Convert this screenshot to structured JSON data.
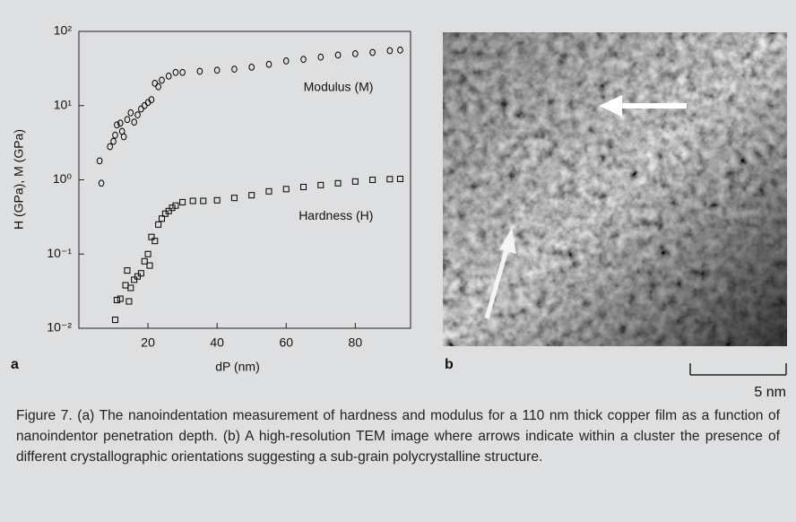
{
  "chart_data": {
    "type": "scatter",
    "y_scale": "log",
    "xlabel": "dP (nm)",
    "ylabel": "H (GPa), M (GPa)",
    "xlim": [
      0,
      96
    ],
    "xticks": [
      20,
      40,
      60,
      80
    ],
    "ylim": [
      0.01,
      100
    ],
    "yticks": [
      {
        "value": 100,
        "label": "10²"
      },
      {
        "value": 10,
        "label": "10¹"
      },
      {
        "value": 1,
        "label": "10⁰"
      },
      {
        "value": 0.1,
        "label": "10⁻¹"
      },
      {
        "value": 0.01,
        "label": "10⁻²"
      }
    ],
    "series": [
      {
        "name": "Modulus (M)",
        "color": "#000000",
        "marker": "circle",
        "x": [
          6,
          6.5,
          9,
          10,
          10.5,
          11,
          12,
          12.5,
          13,
          14,
          15,
          16,
          17,
          18,
          19,
          20,
          21,
          22,
          23,
          24,
          26,
          28,
          30,
          35,
          40,
          45,
          50,
          55,
          60,
          65,
          70,
          75,
          80,
          85,
          90,
          93
        ],
        "values": [
          1.8,
          0.9,
          2.8,
          3.3,
          4,
          5.5,
          5.8,
          4.5,
          3.8,
          6.5,
          8,
          6,
          7.5,
          9,
          10,
          11,
          12,
          20,
          18,
          22,
          25,
          28,
          28,
          29,
          30,
          31,
          33,
          36,
          40,
          42,
          45,
          48,
          50,
          52,
          55,
          56
        ]
      },
      {
        "name": "Hardness (H)",
        "color": "#000000",
        "marker": "square",
        "x": [
          10.5,
          11,
          12,
          13.5,
          14,
          14.5,
          15,
          16,
          17,
          18,
          19,
          20,
          20.5,
          21,
          22,
          23,
          24,
          25,
          26,
          27,
          28,
          30,
          33,
          36,
          40,
          45,
          50,
          55,
          60,
          65,
          70,
          75,
          80,
          85,
          90,
          93
        ],
        "values": [
          0.013,
          0.024,
          0.025,
          0.038,
          0.06,
          0.023,
          0.035,
          0.045,
          0.05,
          0.055,
          0.08,
          0.1,
          0.07,
          0.17,
          0.15,
          0.25,
          0.3,
          0.35,
          0.38,
          0.42,
          0.45,
          0.5,
          0.52,
          0.52,
          0.53,
          0.57,
          0.62,
          0.7,
          0.75,
          0.8,
          0.85,
          0.9,
          0.95,
          1.0,
          1.02,
          1.03
        ]
      }
    ]
  },
  "panel_labels": [
    "a",
    "b"
  ],
  "scale_bar": "5 nm",
  "caption": "Figure 7. (a) The nanoindentation measurement of hardness and modulus for a 110 nm thick copper film as a function of nanoindentor penetration depth. (b) A high-resolution TEM image where arrows indicate within a cluster the presence of different crystallographic orientations suggesting a sub-grain polycrystalline structure."
}
